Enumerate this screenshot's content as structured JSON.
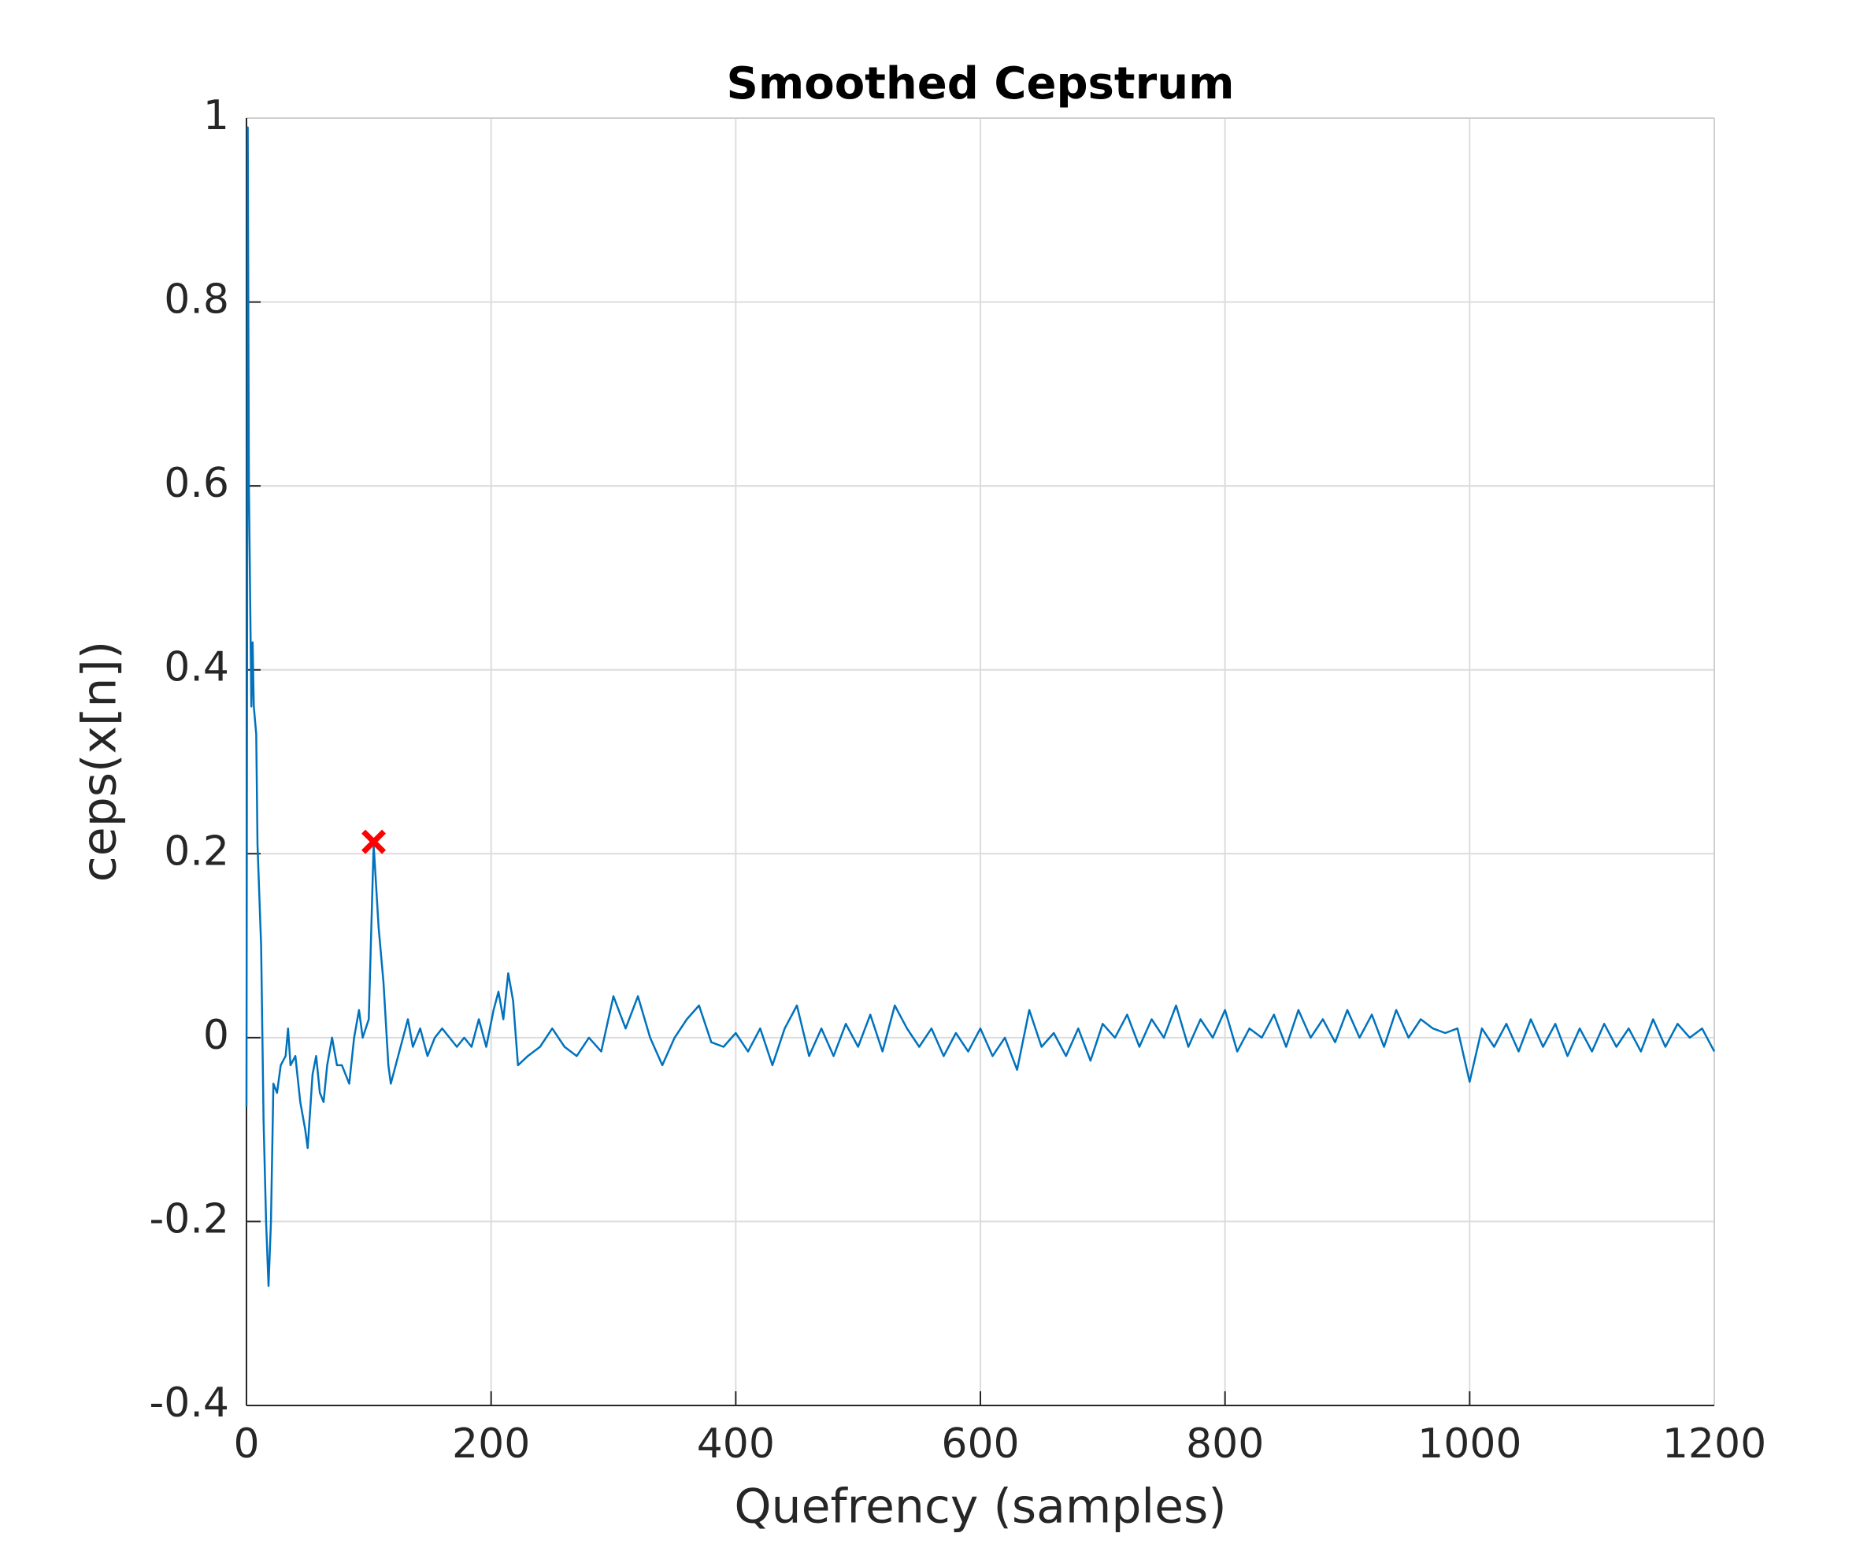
{
  "chart_data": {
    "type": "line",
    "title": "Smoothed Cepstrum",
    "x_label": "Quefrency (samples)",
    "y_label": "ceps(x[n])",
    "x": [
      0,
      1,
      2,
      4,
      5,
      6,
      8,
      9,
      12,
      14,
      16,
      18,
      20,
      22,
      25,
      28,
      32,
      34,
      36,
      40,
      44,
      48,
      50,
      54,
      57,
      60,
      63,
      66,
      70,
      74,
      78,
      84,
      88,
      92,
      95,
      100,
      104,
      108,
      112,
      116,
      118,
      122,
      128,
      132,
      136,
      142,
      148,
      154,
      160,
      166,
      172,
      178,
      184,
      190,
      196,
      202,
      206,
      210,
      214,
      218,
      222,
      230,
      240,
      250,
      260,
      270,
      280,
      290,
      300,
      310,
      320,
      330,
      340,
      350,
      360,
      370,
      380,
      390,
      400,
      410,
      420,
      430,
      440,
      450,
      460,
      470,
      480,
      490,
      500,
      510,
      520,
      530,
      540,
      550,
      560,
      570,
      580,
      590,
      600,
      610,
      620,
      630,
      640,
      650,
      660,
      670,
      680,
      690,
      700,
      710,
      720,
      730,
      740,
      750,
      760,
      770,
      780,
      790,
      800,
      810,
      820,
      830,
      840,
      850,
      860,
      870,
      880,
      890,
      900,
      910,
      920,
      930,
      940,
      950,
      960,
      970,
      980,
      990,
      1000,
      1010,
      1020,
      1030,
      1040,
      1050,
      1060,
      1070,
      1080,
      1090,
      1100,
      1110,
      1120,
      1130,
      1140,
      1150,
      1160,
      1170,
      1180,
      1190,
      1200
    ],
    "series": [
      {
        "color": "#0072bd",
        "values": [
          -0.075,
          0.99,
          0.6,
          0.36,
          0.43,
          0.36,
          0.33,
          0.21,
          0.1,
          -0.09,
          -0.2,
          -0.27,
          -0.2,
          -0.05,
          -0.06,
          -0.03,
          -0.02,
          0.01,
          -0.03,
          -0.02,
          -0.07,
          -0.1,
          -0.12,
          -0.04,
          -0.02,
          -0.06,
          -0.07,
          -0.03,
          0.0,
          -0.03,
          -0.03,
          -0.05,
          0.0,
          0.03,
          0.0,
          0.02,
          0.21,
          0.12,
          0.06,
          -0.03,
          -0.05,
          -0.03,
          0.0,
          0.02,
          -0.01,
          0.01,
          -0.02,
          0.0,
          0.01,
          0.0,
          -0.01,
          0.0,
          -0.01,
          0.02,
          -0.01,
          0.03,
          0.05,
          0.02,
          0.07,
          0.04,
          -0.03,
          -0.02,
          -0.01,
          0.01,
          -0.01,
          -0.02,
          0.0,
          -0.015,
          0.045,
          0.01,
          0.045,
          0.0,
          -0.03,
          0.0,
          0.02,
          0.035,
          -0.005,
          -0.01,
          0.005,
          -0.015,
          0.01,
          -0.03,
          0.01,
          0.035,
          -0.02,
          0.01,
          -0.02,
          0.015,
          -0.01,
          0.025,
          -0.015,
          0.035,
          0.01,
          -0.01,
          0.01,
          -0.02,
          0.005,
          -0.015,
          0.01,
          -0.02,
          0.0,
          -0.035,
          0.03,
          -0.01,
          0.005,
          -0.02,
          0.01,
          -0.025,
          0.015,
          0.0,
          0.025,
          -0.01,
          0.02,
          0.0,
          0.035,
          -0.01,
          0.02,
          0.0,
          0.03,
          -0.015,
          0.01,
          0.0,
          0.025,
          -0.01,
          0.03,
          0.0,
          0.02,
          -0.005,
          0.03,
          0.0,
          0.025,
          -0.01,
          0.03,
          0.0,
          0.02,
          0.01,
          0.005,
          0.01,
          -0.048,
          0.01,
          -0.01,
          0.015,
          -0.015,
          0.02,
          -0.01,
          0.015,
          -0.02,
          0.01,
          -0.015,
          0.015,
          -0.01,
          0.01,
          -0.015,
          0.02,
          -0.01,
          0.015,
          0.0,
          0.01,
          -0.015
        ]
      }
    ],
    "peak": {
      "x": 104,
      "y": 0.213,
      "color": "#ff0000"
    },
    "xlim": [
      0,
      1200
    ],
    "xticks": [
      0,
      200,
      400,
      600,
      800,
      1000,
      1200
    ],
    "ylim": [
      -0.4,
      1
    ],
    "yticks": [
      -0.4,
      -0.2,
      0,
      0.2,
      0.4,
      0.6,
      0.8,
      1
    ],
    "grid": true
  }
}
